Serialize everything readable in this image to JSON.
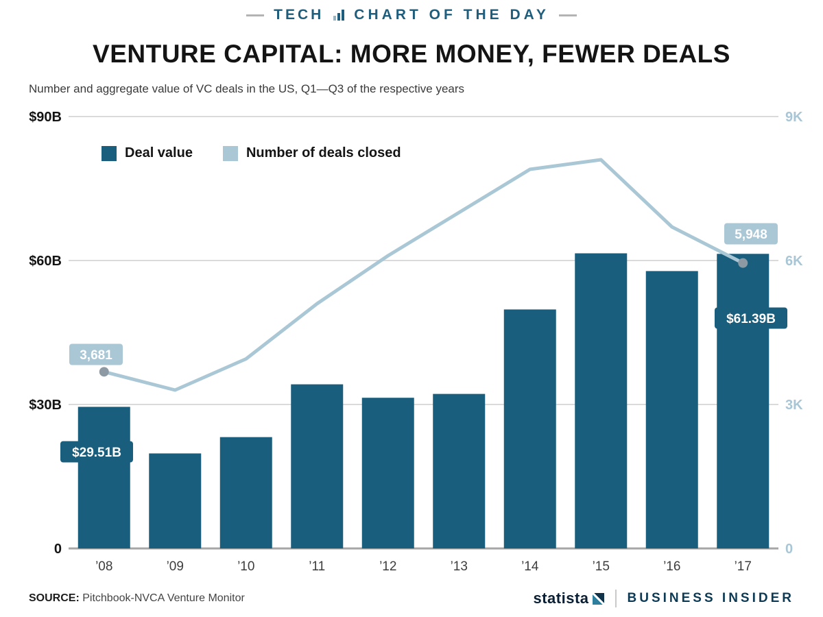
{
  "header": {
    "tech": "TECH",
    "chart_of_day": "CHART OF THE DAY"
  },
  "chart_data": {
    "type": "bar",
    "title": "VENTURE CAPITAL: MORE MONEY, FEWER DEALS",
    "subtitle": "Number and aggregate value of VC deals in the US, Q1—Q3 of the respective years",
    "categories": [
      "’08",
      "’09",
      "’10",
      "’11",
      "’12",
      "’13",
      "’14",
      "’15",
      "’16",
      "’17"
    ],
    "series": [
      {
        "name": "Deal value",
        "type": "bar",
        "axis": "left",
        "unit": "$B",
        "color": "#1a5e7d",
        "values": [
          29.51,
          19.8,
          23.2,
          34.2,
          31.4,
          32.2,
          49.8,
          61.5,
          57.8,
          61.39
        ]
      },
      {
        "name": "Number of deals closed",
        "type": "line",
        "axis": "right",
        "unit": "deals",
        "color": "#aac7d6",
        "marker_color": "#8e9aa3",
        "values": [
          3681,
          3300,
          3950,
          5100,
          6100,
          7000,
          7900,
          8100,
          6700,
          5948
        ]
      }
    ],
    "left_axis": {
      "max": 90,
      "tick_values": [
        90,
        60,
        30,
        0
      ],
      "tick_labels": [
        "$90B",
        "$60B",
        "$30B",
        "0"
      ]
    },
    "right_axis": {
      "max": 9000,
      "tick_values": [
        9000,
        6000,
        3000,
        0
      ],
      "tick_labels": [
        "9K",
        "6K",
        "3K",
        "0"
      ]
    },
    "grid": true,
    "legend_position": "top-left inside plot",
    "annotations": [
      {
        "id": "deals-first",
        "series": "Number of deals closed",
        "category": "’08",
        "text": "3,681"
      },
      {
        "id": "deals-last",
        "series": "Number of deals closed",
        "category": "’17",
        "text": "5,948"
      },
      {
        "id": "value-first",
        "series": "Deal value",
        "category": "’08",
        "text": "$29.51B"
      },
      {
        "id": "value-last",
        "series": "Deal value",
        "category": "’17",
        "text": "$61.39B"
      }
    ]
  },
  "footer": {
    "source_label": "SOURCE:",
    "source_text": "Pitchbook-NVCA Venture Monitor",
    "statista": "statista",
    "business_insider": "BUSINESS INSIDER"
  }
}
